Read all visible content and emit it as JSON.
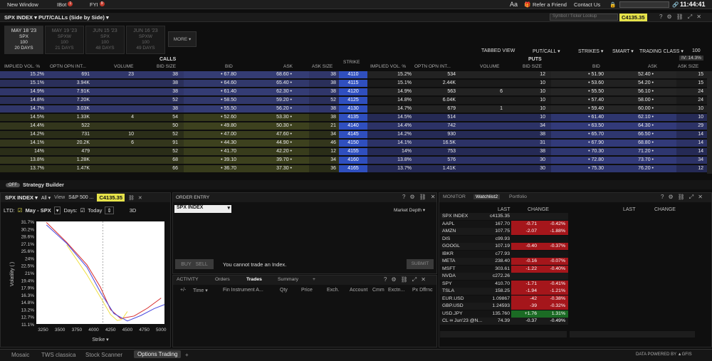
{
  "topbar": {
    "new_window": "New Window",
    "ibot": "IBot",
    "ibot_badge": "1",
    "fyi": "FYI",
    "fyi_badge": "9",
    "font_icon": "Aa",
    "refer": "Refer a Friend",
    "contact": "Contact Us",
    "time": "11:44:41"
  },
  "optpanel": {
    "title": "SPX INDEX ▾ PUT/CALLs (Side by Side) ▾",
    "search_placeholder": "Symbol / Ticker Lookup",
    "price": "C4135.35",
    "iv": "IV: 14.3%"
  },
  "expiries": [
    {
      "date": "MAY 18 '23",
      "sym": "SPX",
      "mult": "100",
      "days": "20 DAYS",
      "on": true
    },
    {
      "date": "MAY 19 '23",
      "sym": "SPXW",
      "mult": "100",
      "days": "21 DAYS",
      "on": false
    },
    {
      "date": "JUN 15 '23",
      "sym": "SPX",
      "mult": "100",
      "days": "48 DAYS",
      "on": false
    },
    {
      "date": "JUN 16 '23",
      "sym": "SPXW",
      "mult": "100",
      "days": "49 DAYS",
      "on": false
    }
  ],
  "more": "MORE ▾",
  "controls": {
    "tabbed": "TABBED VIEW",
    "putcall": "PUT/CALL ▾",
    "strikes": "STRIKES ▾",
    "smart": "SMART ▾",
    "trading_class": "TRADING CLASS ▾",
    "tc_value": "100"
  },
  "sections": {
    "calls": "CALLS",
    "puts": "PUTS"
  },
  "headers": {
    "iv": "IMPLIED VOL. %",
    "oi": "OPTN OPN INT...",
    "vol": "VOLUME",
    "bidsize": "BID SIZE",
    "bid": "BID",
    "ask": "ASK",
    "asksize": "ASK SIZE",
    "strike": "STRIKE"
  },
  "chain": [
    {
      "civ": "15.2%",
      "coi": "691",
      "cvol": "23",
      "cbs": "38",
      "cbid": "• 67.80",
      "cask": "68.60 •",
      "cas": "38",
      "strike": "4110",
      "piv": "15.2%",
      "poi": "534",
      "pvol": "",
      "pbs": "12",
      "pbid": "• 51.90",
      "pask": "52.40 •",
      "pas": "15"
    },
    {
      "civ": "15.1%",
      "coi": "3.94K",
      "cvol": "",
      "cbs": "38",
      "cbid": "• 64.60",
      "cask": "65.40 •",
      "cas": "38",
      "strike": "4115",
      "piv": "15.1%",
      "poi": "2.44K",
      "pvol": "",
      "pbs": "10",
      "pbid": "• 53.60",
      "pask": "54.20 •",
      "pas": "15"
    },
    {
      "civ": "14.9%",
      "coi": "7.91K",
      "cvol": "",
      "cbs": "38",
      "cbid": "• 61.40",
      "cask": "62.30 •",
      "cas": "38",
      "strike": "4120",
      "piv": "14.9%",
      "poi": "563",
      "pvol": "6",
      "pbs": "10",
      "pbid": "• 55.50",
      "pask": "56.10 •",
      "pas": "24"
    },
    {
      "civ": "14.8%",
      "coi": "7.20K",
      "cvol": "",
      "cbs": "52",
      "cbid": "• 58.50",
      "cask": "59.20 •",
      "cas": "52",
      "strike": "4125",
      "piv": "14.8%",
      "poi": "6.04K",
      "pvol": "",
      "pbs": "10",
      "pbid": "• 57.40",
      "pask": "58.00 •",
      "pas": "24"
    },
    {
      "civ": "14.7%",
      "coi": "3.03K",
      "cvol": "",
      "cbs": "38",
      "cbid": "• 55.50",
      "cask": "56.20 •",
      "cas": "38",
      "strike": "4130",
      "piv": "14.7%",
      "poi": "679",
      "pvol": "1",
      "pbs": "10",
      "pbid": "• 59.40",
      "pask": "60.00 •",
      "pas": "10"
    },
    {
      "civ": "14.5%",
      "coi": "1.33K",
      "cvol": "4",
      "cbs": "54",
      "cbid": "• 52.60",
      "cask": "53.30 •",
      "cas": "38",
      "strike": "4135",
      "piv": "14.5%",
      "poi": "514",
      "pvol": "",
      "pbs": "10",
      "pbid": "• 61.40",
      "pask": "62.10 •",
      "pas": "10"
    },
    {
      "civ": "14.4%",
      "coi": "522",
      "cvol": "",
      "cbs": "50",
      "cbid": "• 49.80",
      "cask": "50.30 •",
      "cas": "21",
      "strike": "4140",
      "piv": "14.4%",
      "poi": "742",
      "pvol": "",
      "pbs": "34",
      "pbid": "• 63.50",
      "pask": "64.30 •",
      "pas": "29"
    },
    {
      "civ": "14.2%",
      "coi": "731",
      "cvol": "10",
      "cbs": "52",
      "cbid": "• 47.00",
      "cask": "47.60 •",
      "cas": "34",
      "strike": "4145",
      "piv": "14.2%",
      "poi": "930",
      "pvol": "",
      "pbs": "38",
      "pbid": "• 65.70",
      "pask": "66.50 •",
      "pas": "14"
    },
    {
      "civ": "14.1%",
      "coi": "20.2K",
      "cvol": "6",
      "cbs": "91",
      "cbid": "• 44.30",
      "cask": "44.90 •",
      "cas": "46",
      "strike": "4150",
      "piv": "14.1%",
      "poi": "16.5K",
      "pvol": "",
      "pbs": "31",
      "pbid": "• 67.90",
      "pask": "68.80 •",
      "pas": "14"
    },
    {
      "civ": "14%",
      "coi": "479",
      "cvol": "",
      "cbs": "52",
      "cbid": "• 41.70",
      "cask": "42.20 •",
      "cas": "12",
      "strike": "4155",
      "piv": "14%",
      "poi": "753",
      "pvol": "",
      "pbs": "38",
      "pbid": "• 70.30",
      "pask": "71.20 •",
      "pas": "14"
    },
    {
      "civ": "13.8%",
      "coi": "1.28K",
      "cvol": "",
      "cbs": "68",
      "cbid": "• 39.10",
      "cask": "39.70 •",
      "cas": "34",
      "strike": "4160",
      "piv": "13.8%",
      "poi": "576",
      "pvol": "",
      "pbs": "30",
      "pbid": "• 72.80",
      "pask": "73.70 •",
      "pas": "34"
    },
    {
      "civ": "13.7%",
      "coi": "1.47K",
      "cvol": "",
      "cbs": "66",
      "cbid": "• 36.70",
      "cask": "37.30 •",
      "cas": "36",
      "strike": "4165",
      "piv": "13.7%",
      "poi": "1.41K",
      "pvol": "",
      "pbs": "30",
      "pbid": "• 75.30",
      "pask": "76.20 •",
      "pas": "12"
    }
  ],
  "strategy": {
    "toggle": "OFF",
    "label": "Strategy Builder"
  },
  "volpanel": {
    "sym": "SPX INDEX ▾",
    "all": "All ▾",
    "view": "View",
    "name": "S&P 500 ...",
    "price": "C4135.35",
    "ltd": "LTD:",
    "ltd_val": "May - SPX",
    "days": "Days:",
    "today": "Today",
    "mode": "3D",
    "ylabel": "Volatility ( )",
    "xlabel": "Strike ▾"
  },
  "order": {
    "title": "ORDER ENTRY",
    "symbol": "SPX INDEX",
    "depth": "Market Depth ▾",
    "buy": "BUY",
    "sell": "SELL",
    "msg": "You cannot trade an Index.",
    "submit": "SUBMIT"
  },
  "activity": {
    "tabs": [
      "ACTIVITY",
      "Orders",
      "Trades",
      "Summary",
      "+"
    ],
    "cols": [
      "+/-",
      "Time ▾",
      "Fin Instrument A...",
      "Qty",
      "Price",
      "Exch.",
      "Account",
      "Cmm",
      "Exctn...",
      "Px Dffrnc"
    ]
  },
  "monitor": {
    "tabs": [
      "MONITOR",
      "Watchlist2",
      "Portfolio"
    ],
    "last": "LAST",
    "change": "CHANGE",
    "rows": [
      {
        "sym": "SPX INDEX",
        "last": "c4135.35",
        "chg": "",
        "pct": "",
        "c": ""
      },
      {
        "sym": "AAPL",
        "last": "167.70",
        "chg": "-0.71",
        "pct": "-0.42%",
        "c": "red"
      },
      {
        "sym": "AMZN",
        "last": "107.75",
        "chg": "-2.07",
        "pct": "-1.88%",
        "c": "red"
      },
      {
        "sym": "DIS",
        "last": "c99.93",
        "chg": "",
        "pct": "",
        "c": ""
      },
      {
        "sym": "GOOGL",
        "last": "107.19",
        "chg": "-0.40",
        "pct": "-0.37%",
        "c": "red"
      },
      {
        "sym": "IBKR",
        "last": "c77.93",
        "chg": "",
        "pct": "",
        "c": ""
      },
      {
        "sym": "META",
        "last": "238.40",
        "chg": "-0.16",
        "pct": "-0.07%",
        "c": "red"
      },
      {
        "sym": "MSFT",
        "last": "303.61",
        "chg": "-1.22",
        "pct": "-0.40%",
        "c": "red"
      },
      {
        "sym": "NVDA",
        "last": "c272.26",
        "chg": "",
        "pct": "",
        "c": ""
      },
      {
        "sym": "SPY",
        "last": "410.70",
        "chg": "-1.71",
        "pct": "-0.41%",
        "c": "red"
      },
      {
        "sym": "TSLA",
        "last": "158.25",
        "chg": "-1.94",
        "pct": "-1.21%",
        "c": "red"
      },
      {
        "sym": "EUR.USD",
        "last": "1.09867",
        "chg": "-42",
        "pct": "-0.38%",
        "c": "red"
      },
      {
        "sym": "GBP.USD",
        "last": "1.24593",
        "chg": "-39",
        "pct": "-0.32%",
        "c": "red"
      },
      {
        "sym": "USD.JPY",
        "last": "135.760",
        "chg": "+1.76",
        "pct": "1.31%",
        "c": "grn"
      },
      {
        "sym": "CL ∞ Jun'23 @N...",
        "last": "74.39",
        "chg": "-0.37",
        "pct": "-0.49%",
        "c": ""
      }
    ]
  },
  "bottom": {
    "tabs": [
      "Mosaic",
      "TWS classica",
      "Stock Scanner",
      "Options Trading",
      "+"
    ],
    "powered": "DATA POWERED BY ▲GFIS"
  },
  "chart_data": {
    "type": "line",
    "ylabel": "Volatility ( )",
    "xlabel": "Strike",
    "yticks": [
      "31.7%",
      "30.2%",
      "28.6%",
      "27.1%",
      "25.6%",
      "24%",
      "22.5%",
      "21%",
      "19.4%",
      "17.9%",
      "16.3%",
      "14.8%",
      "13.2%",
      "12.7%",
      "11.1%"
    ],
    "xticks": [
      "3250",
      "3500",
      "3750",
      "4000",
      "4250",
      "4500",
      "4750",
      "5000"
    ],
    "ylim": [
      11.1,
      31.7
    ],
    "xlim": [
      3150,
      5050
    ],
    "series": [
      {
        "color": "#d62b2b",
        "x": [
          3300,
          3600,
          3900,
          4100,
          4250,
          4400,
          4600,
          4800,
          5000
        ],
        "y": [
          31.5,
          27.5,
          23,
          18.5,
          14,
          12.2,
          12.7,
          14.3,
          16.3
        ]
      },
      {
        "color": "#f0e040",
        "x": [
          3600,
          3900,
          4100,
          4250,
          4350,
          4420,
          4500
        ],
        "y": [
          27,
          21,
          16.5,
          13,
          11.8,
          12,
          13.6
        ]
      },
      {
        "color": "#4a4ae0",
        "x": [
          3300,
          3600,
          3900,
          4100,
          4300,
          4500,
          4700,
          4900,
          5050
        ],
        "y": [
          31,
          27.3,
          22.5,
          17.5,
          13.2,
          11.7,
          12.8,
          14.2,
          15
        ]
      }
    ]
  }
}
